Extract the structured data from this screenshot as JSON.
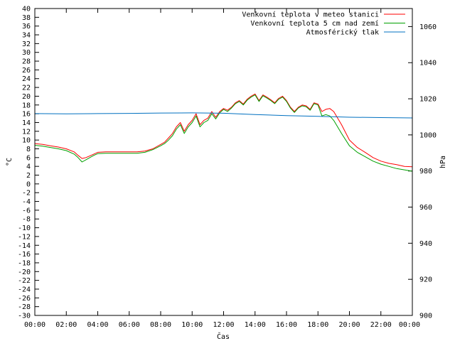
{
  "chart_data": {
    "type": "line",
    "xlabel": "Čas",
    "ylabel_left": "°C",
    "ylabel_right": "hPa",
    "x_ticks": [
      "00:00",
      "02:00",
      "04:00",
      "06:00",
      "08:00",
      "10:00",
      "12:00",
      "14:00",
      "16:00",
      "18:00",
      "20:00",
      "22:00",
      "00:00"
    ],
    "x_range_hours": [
      0,
      24
    ],
    "y_left_range": [
      -30,
      40
    ],
    "y_left_ticks": [
      40,
      38,
      36,
      34,
      32,
      30,
      28,
      26,
      24,
      22,
      20,
      18,
      16,
      14,
      12,
      10,
      8,
      6,
      4,
      2,
      0,
      -2,
      -4,
      -6,
      -8,
      -10,
      -12,
      -14,
      -16,
      -18,
      -20,
      -22,
      -24,
      -26,
      -28,
      -30
    ],
    "y_right_range": [
      900,
      1070
    ],
    "y_right_ticks": [
      1060,
      1040,
      1020,
      1000,
      980,
      960,
      940,
      920,
      900
    ],
    "grid": false,
    "legend_position": "top-right",
    "series": [
      {
        "name": "Venkovní teplota v meteo stanici",
        "axis": "left",
        "color": "#ff0000",
        "x": [
          0,
          0.5,
          1,
          1.5,
          2,
          2.5,
          2.75,
          3,
          3.25,
          3.5,
          3.75,
          4,
          4.5,
          5,
          5.5,
          6,
          6.5,
          7,
          7.5,
          8,
          8.25,
          8.5,
          8.75,
          9,
          9.25,
          9.5,
          9.75,
          10,
          10.25,
          10.5,
          10.75,
          11,
          11.25,
          11.5,
          11.75,
          12,
          12.25,
          12.5,
          12.75,
          13,
          13.25,
          13.5,
          13.75,
          14,
          14.25,
          14.5,
          14.75,
          15,
          15.25,
          15.5,
          15.75,
          16,
          16.25,
          16.5,
          16.75,
          17,
          17.25,
          17.5,
          17.75,
          18,
          18.25,
          18.5,
          18.75,
          19,
          19.5,
          20,
          20.5,
          21,
          21.5,
          22,
          22.5,
          23,
          23.5,
          24
        ],
        "y": [
          9.2,
          9,
          8.7,
          8.4,
          8,
          7.3,
          6.5,
          5.8,
          6,
          6.4,
          6.8,
          7.2,
          7.3,
          7.3,
          7.3,
          7.3,
          7.3,
          7.5,
          8,
          9,
          9.5,
          10.5,
          11.5,
          13,
          14,
          12,
          13.5,
          14.5,
          16,
          13.5,
          14.5,
          15,
          16.5,
          15.2,
          16.5,
          17.2,
          16.8,
          17.5,
          18.5,
          19,
          18.2,
          19.3,
          20,
          20.5,
          19,
          20.3,
          19.8,
          19.2,
          18.5,
          19.5,
          20,
          19,
          17.5,
          16.5,
          17.5,
          18,
          17.8,
          17,
          18.5,
          18.2,
          16.5,
          17,
          17.2,
          16.5,
          13.5,
          10,
          8.3,
          7.2,
          6,
          5.2,
          4.7,
          4.4,
          4,
          3.9
        ]
      },
      {
        "name": "Venkovní teplota 5 cm nad zemí",
        "axis": "left",
        "color": "#00a000",
        "x": [
          0,
          0.5,
          1,
          1.5,
          2,
          2.5,
          2.75,
          3,
          3.25,
          3.5,
          3.75,
          4,
          4.5,
          5,
          5.5,
          6,
          6.5,
          7,
          7.5,
          8,
          8.25,
          8.5,
          8.75,
          9,
          9.25,
          9.5,
          9.75,
          10,
          10.25,
          10.5,
          10.75,
          11,
          11.25,
          11.5,
          11.75,
          12,
          12.25,
          12.5,
          12.75,
          13,
          13.25,
          13.5,
          13.75,
          14,
          14.25,
          14.5,
          14.75,
          15,
          15.25,
          15.5,
          15.75,
          16,
          16.25,
          16.5,
          16.75,
          17,
          17.25,
          17.5,
          17.75,
          18,
          18.25,
          18.5,
          18.75,
          19,
          19.5,
          20,
          20.5,
          21,
          21.5,
          22,
          22.5,
          23,
          23.5,
          24
        ],
        "y": [
          8.8,
          8.6,
          8.3,
          8,
          7.6,
          6.8,
          6,
          5,
          5.5,
          6,
          6.5,
          6.9,
          7,
          7,
          7,
          7,
          7,
          7.2,
          7.8,
          8.7,
          9.2,
          10,
          11,
          12.5,
          13.5,
          11.5,
          13,
          14,
          15.5,
          13,
          14,
          14.5,
          16,
          14.8,
          16.2,
          17,
          16.5,
          17.3,
          18.3,
          18.8,
          18,
          19.1,
          19.8,
          20.3,
          18.8,
          20.1,
          19.6,
          19,
          18.3,
          19.3,
          19.8,
          18.8,
          17.3,
          16.3,
          17.3,
          17.8,
          17.6,
          16.8,
          18.3,
          18,
          15.5,
          15.8,
          15.5,
          14.5,
          11.5,
          8.7,
          7.2,
          6.2,
          5.2,
          4.5,
          4,
          3.5,
          3.2,
          2.9
        ]
      },
      {
        "name": "Atmosférický tlak",
        "axis": "right",
        "color": "#0070c0",
        "x": [
          0,
          2,
          4,
          6,
          8,
          10,
          12,
          14,
          16,
          18,
          20,
          22,
          24
        ],
        "y": [
          1011.8,
          1011.7,
          1011.8,
          1011.9,
          1012.1,
          1012.2,
          1012.0,
          1011.3,
          1010.7,
          1010.3,
          1009.8,
          1009.6,
          1009.4
        ]
      }
    ]
  }
}
